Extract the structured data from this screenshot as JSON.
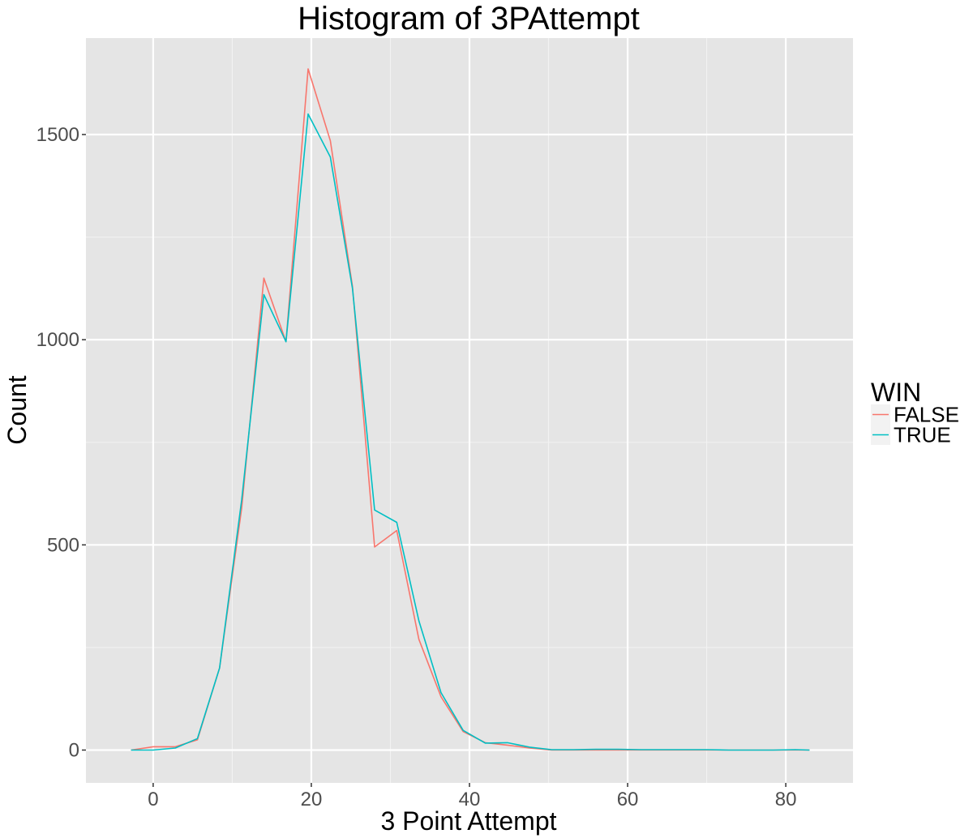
{
  "chart_data": {
    "type": "line",
    "title": "Histogram of 3PAttempt",
    "xlabel": "3 Point Attempt",
    "ylabel": "Count",
    "xlim": [
      -8.5,
      88.5
    ],
    "ylim": [
      -80,
      1735
    ],
    "x_ticks": [
      0,
      20,
      40,
      60,
      80
    ],
    "x_tick_labels": [
      "0",
      "20",
      "40",
      "60",
      "80"
    ],
    "x_minor_ticks": [
      10,
      30,
      50,
      70
    ],
    "y_ticks": [
      0,
      500,
      1000,
      1500
    ],
    "y_tick_labels": [
      "0",
      "500",
      "1000",
      "1500"
    ],
    "y_minor_ticks": [
      250,
      750,
      1250
    ],
    "grid": true,
    "legend_position": "right",
    "legend_title": "WIN",
    "x": [
      -2.8,
      0,
      2.8,
      5.6,
      8.4,
      11.2,
      14.0,
      16.8,
      19.6,
      22.4,
      25.2,
      28.0,
      30.8,
      33.6,
      36.4,
      39.2,
      42.0,
      44.8,
      47.6,
      50.4,
      53.2,
      56.0,
      58.8,
      61.6,
      64.4,
      67.2,
      70.0,
      72.8,
      75.6,
      78.4,
      81.2,
      83.0
    ],
    "series": [
      {
        "name": "FALSE",
        "color": "#F8766D",
        "values": [
          0,
          8,
          8,
          25,
          200,
          590,
          1150,
          995,
          1660,
          1485,
          1130,
          495,
          535,
          270,
          130,
          45,
          18,
          12,
          5,
          0,
          0,
          0,
          0,
          0,
          0,
          0,
          0,
          0,
          0,
          0,
          0,
          0
        ]
      },
      {
        "name": "TRUE",
        "color": "#00BFC4",
        "values": [
          0,
          0,
          5,
          28,
          200,
          610,
          1110,
          995,
          1550,
          1445,
          1125,
          585,
          555,
          315,
          140,
          48,
          17,
          18,
          7,
          1,
          1,
          2,
          2,
          1,
          1,
          1,
          1,
          0,
          0,
          0,
          1,
          0
        ]
      }
    ]
  }
}
